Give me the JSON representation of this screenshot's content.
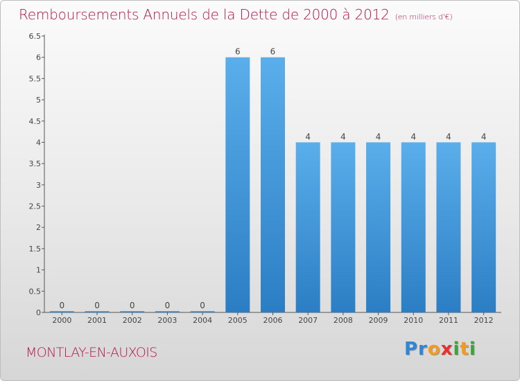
{
  "header": {
    "title": "Remboursements Annuels de la Dette de 2000 à 2012",
    "unit": "(en milliers d'€)"
  },
  "footer": {
    "commune": "MONTLAY-EN-AUXOIS",
    "logo_text": "Proxiti"
  },
  "colors": {
    "title": "#b5124a",
    "bar_top": "#5aaeea",
    "bar_bottom": "#2c7ec4"
  },
  "chart_data": {
    "type": "bar",
    "categories": [
      "2000",
      "2001",
      "2002",
      "2003",
      "2004",
      "2005",
      "2006",
      "2007",
      "2008",
      "2009",
      "2010",
      "2011",
      "2012"
    ],
    "values": [
      0,
      0,
      0,
      0,
      0,
      6,
      6,
      4,
      4,
      4,
      4,
      4,
      4
    ],
    "data_labels": [
      "0",
      "0",
      "0",
      "0",
      "0",
      "6",
      "6",
      "4",
      "4",
      "4",
      "4",
      "4",
      "4"
    ],
    "yticks": [
      "0",
      "0.5",
      "1",
      "1.5",
      "2",
      "2.5",
      "3",
      "3.5",
      "4",
      "4.5",
      "5",
      "5.5",
      "6",
      "6.5"
    ],
    "ylim": [
      0,
      6.5
    ],
    "grid": false
  }
}
